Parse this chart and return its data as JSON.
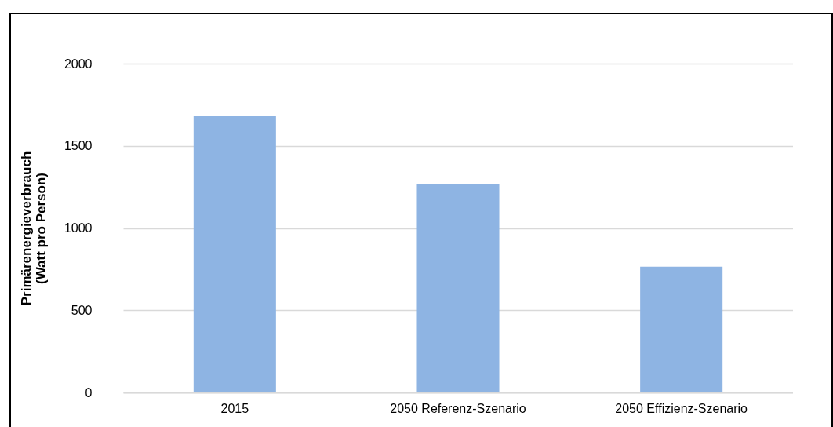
{
  "chart_data": {
    "type": "bar",
    "ylabel": "Primärenergieverbrauch\n(Watt pro Person)",
    "categories": [
      "2015",
      "2050 Referenz-Szenario",
      "2050 Effizienz-Szenario"
    ],
    "series": [
      {
        "color": "#8eb4e3",
        "values": [
          1680,
          1265,
          765
        ]
      }
    ],
    "ylim": [
      0,
      2000
    ],
    "yticks": [
      0,
      500,
      1000,
      1500,
      2000
    ],
    "grid": "y",
    "legend": false
  }
}
